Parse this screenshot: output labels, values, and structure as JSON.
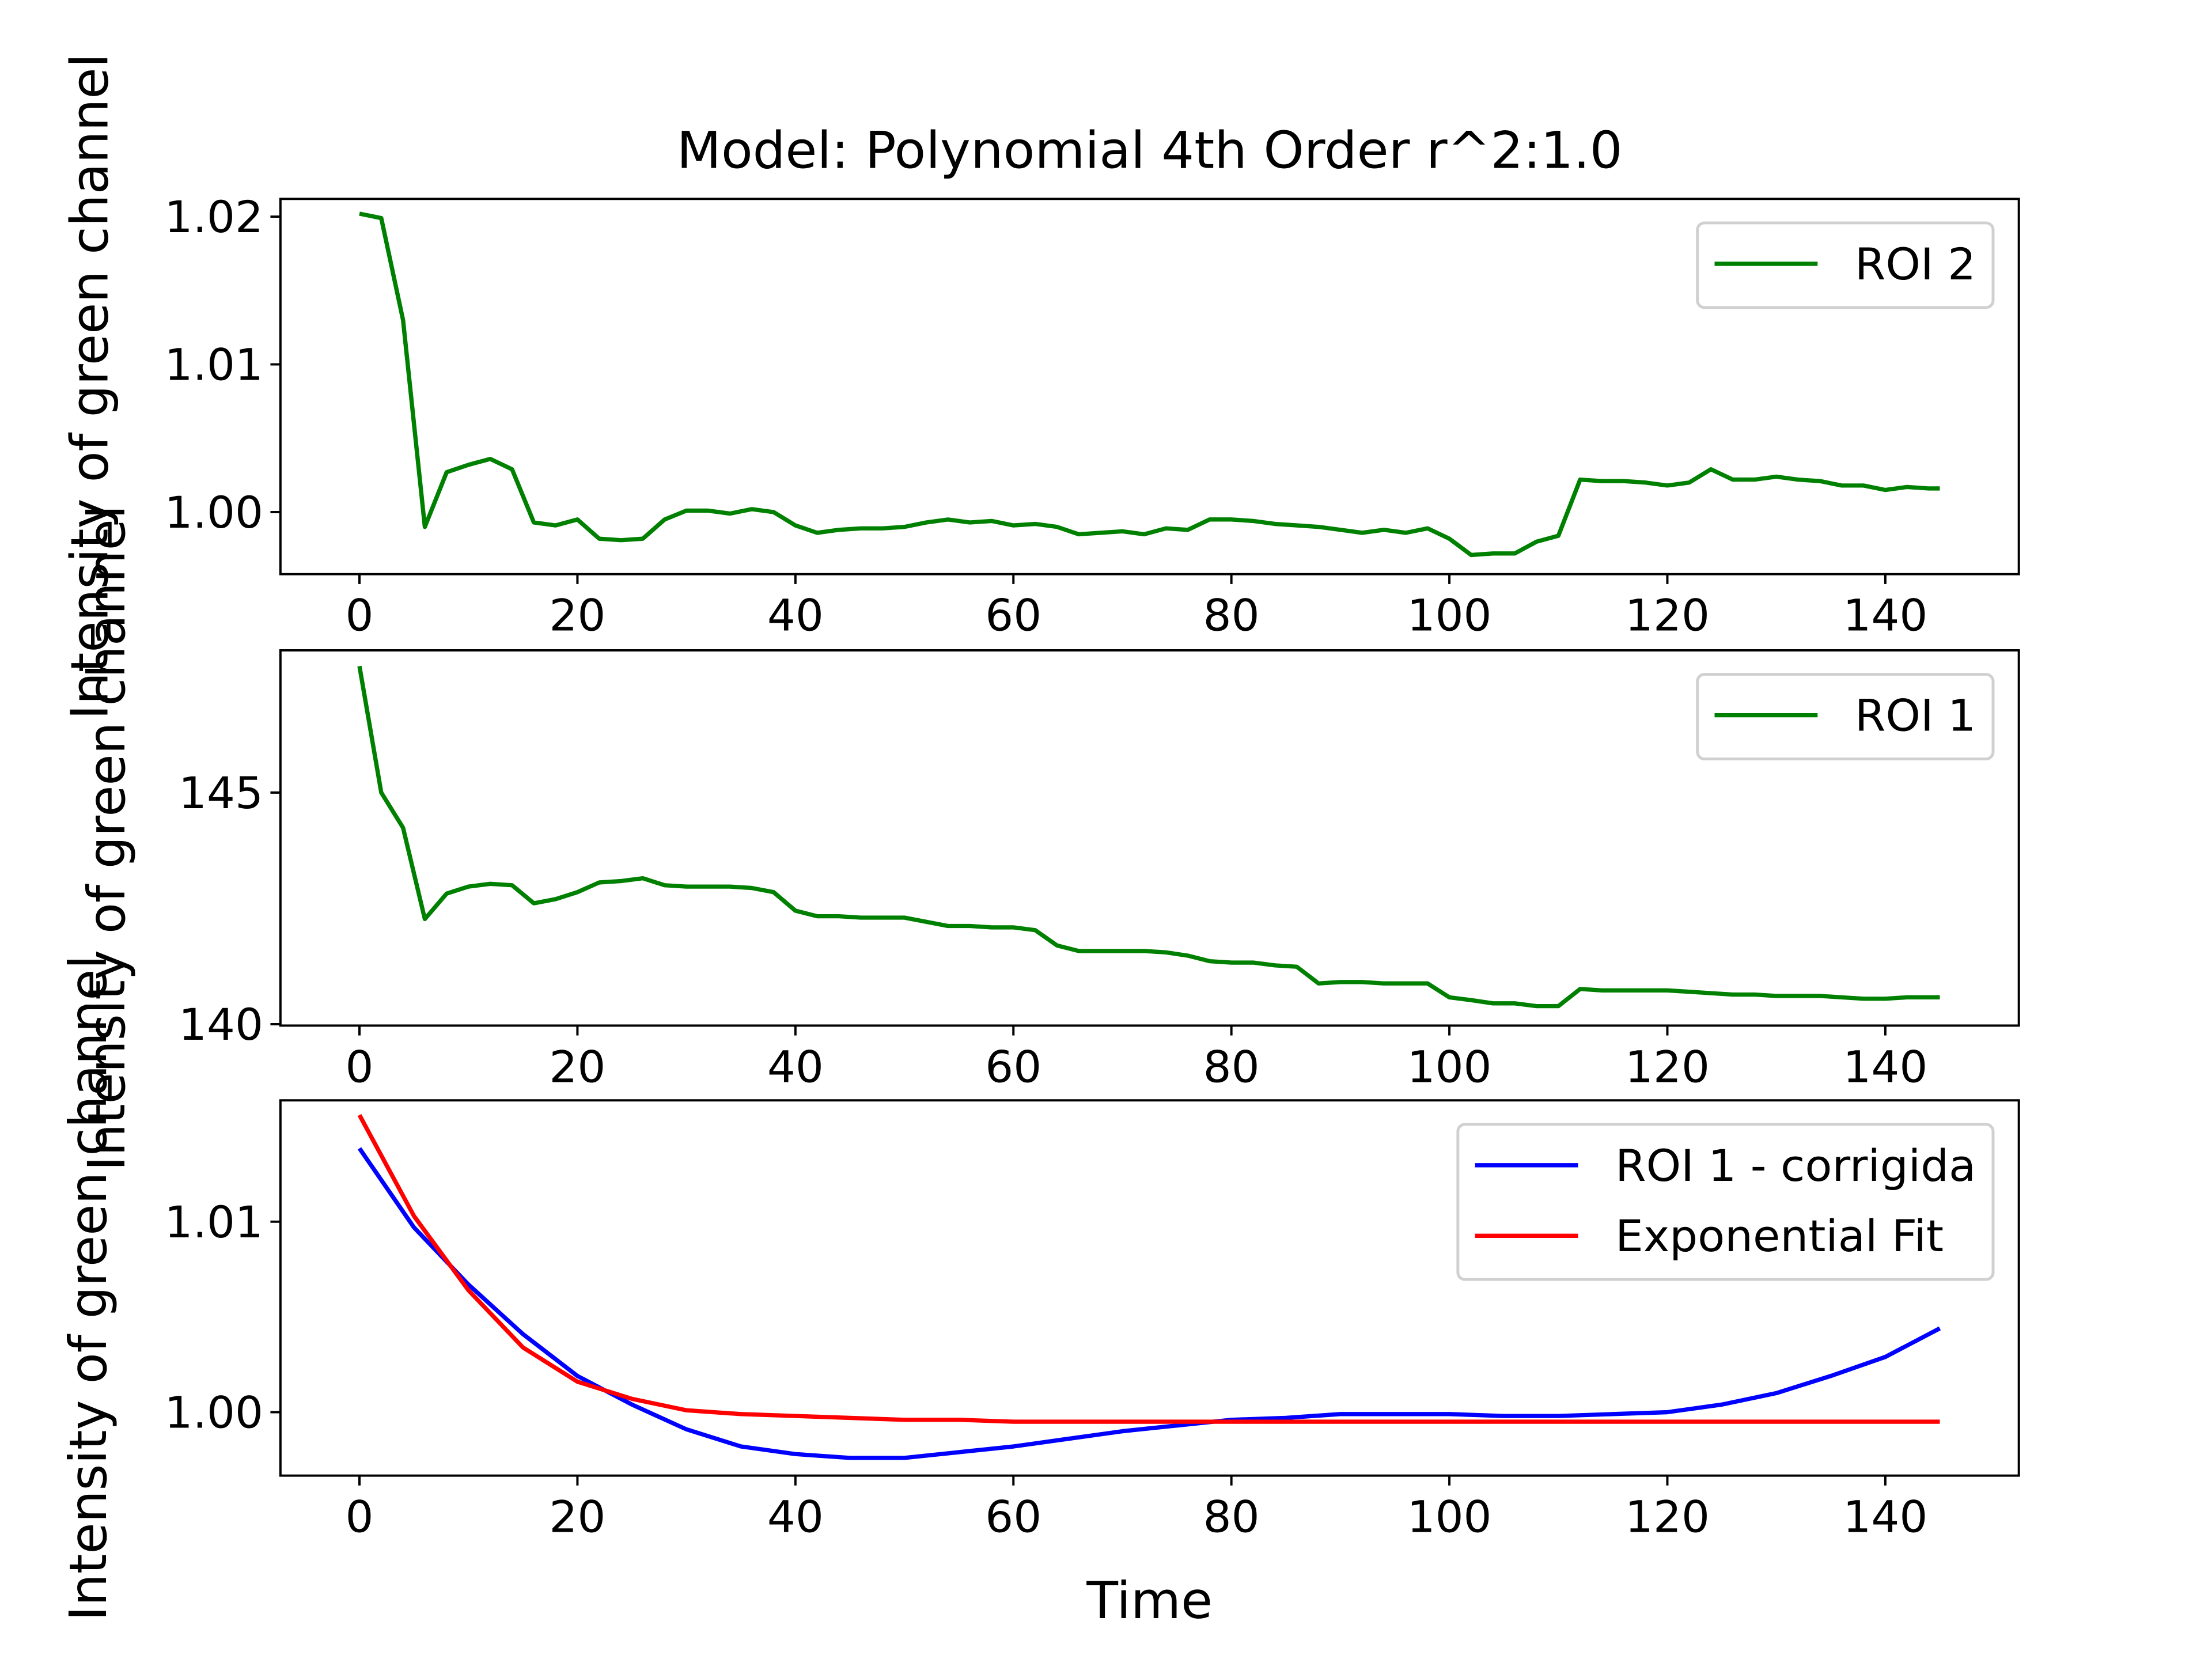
{
  "chart_data": [
    {
      "type": "line",
      "title": "Model: Polynomial 4th Order r^2:1.0",
      "ylabel": "Intensity of green channel",
      "x": [
        0,
        2,
        4,
        6,
        8,
        10,
        12,
        14,
        16,
        18,
        20,
        22,
        24,
        26,
        28,
        30,
        32,
        34,
        36,
        38,
        40,
        42,
        44,
        46,
        48,
        50,
        52,
        54,
        56,
        58,
        60,
        62,
        64,
        66,
        68,
        70,
        72,
        74,
        76,
        78,
        80,
        82,
        84,
        86,
        88,
        90,
        92,
        94,
        96,
        98,
        100,
        102,
        104,
        106,
        108,
        110,
        112,
        114,
        116,
        118,
        120,
        122,
        124,
        126,
        128,
        130,
        132,
        134,
        136,
        138,
        140,
        142,
        144,
        145
      ],
      "series": [
        {
          "name": "ROI 2",
          "color": "#008000",
          "values": [
            1.0202,
            1.0199,
            1.013,
            0.999,
            1.0027,
            1.0032,
            1.0036,
            1.0029,
            0.9993,
            0.9991,
            0.9995,
            0.9982,
            0.9981,
            0.9982,
            0.9995,
            1.0001,
            1.0001,
            0.9999,
            1.0002,
            1.0,
            0.9991,
            0.9986,
            0.9988,
            0.9989,
            0.9989,
            0.999,
            0.9993,
            0.9995,
            0.9993,
            0.9994,
            0.9991,
            0.9992,
            0.999,
            0.9985,
            0.9986,
            0.9987,
            0.9985,
            0.9989,
            0.9988,
            0.9995,
            0.9995,
            0.9994,
            0.9992,
            0.9991,
            0.999,
            0.9988,
            0.9986,
            0.9988,
            0.9986,
            0.9989,
            0.9982,
            0.9971,
            0.9972,
            0.9972,
            0.998,
            0.9984,
            1.0022,
            1.0021,
            1.0021,
            1.002,
            1.0018,
            1.002,
            1.0029,
            1.0022,
            1.0022,
            1.0024,
            1.0022,
            1.0021,
            1.0018,
            1.0018,
            1.0015,
            1.0017,
            1.0016,
            1.0016
          ]
        }
      ],
      "xlim": [
        -7.25,
        152.25
      ],
      "xticks": [
        0,
        20,
        40,
        60,
        80,
        100,
        120,
        140
      ],
      "ylim": [
        0.9958,
        1.0212
      ],
      "yticks": [
        {
          "value": 1.0,
          "label": "1.00"
        },
        1.01,
        1.02
      ],
      "legend": "upper right"
    },
    {
      "type": "line",
      "ylabel": "Intensity of green channel",
      "x": [
        0,
        2,
        4,
        6,
        8,
        10,
        12,
        14,
        16,
        18,
        20,
        22,
        24,
        26,
        28,
        30,
        32,
        34,
        36,
        38,
        40,
        42,
        44,
        46,
        48,
        50,
        52,
        54,
        56,
        58,
        60,
        62,
        64,
        66,
        68,
        70,
        72,
        74,
        76,
        78,
        80,
        82,
        84,
        86,
        88,
        90,
        92,
        94,
        96,
        98,
        100,
        102,
        104,
        106,
        108,
        110,
        112,
        114,
        116,
        118,
        120,
        122,
        124,
        126,
        128,
        130,
        132,
        134,
        136,
        138,
        140,
        142,
        144,
        145
      ],
      "series": [
        {
          "name": "ROI 1",
          "color": "#008000",
          "values": [
            147.73,
            145.0,
            144.24,
            142.27,
            142.82,
            142.97,
            143.03,
            143.0,
            142.61,
            142.7,
            142.85,
            143.06,
            143.09,
            143.15,
            143.0,
            142.97,
            142.97,
            142.97,
            142.94,
            142.85,
            142.45,
            142.33,
            142.33,
            142.3,
            142.3,
            142.3,
            142.21,
            142.12,
            142.12,
            142.09,
            142.09,
            142.03,
            141.7,
            141.58,
            141.58,
            141.58,
            141.58,
            141.55,
            141.48,
            141.36,
            141.33,
            141.33,
            141.27,
            141.24,
            140.88,
            140.91,
            140.91,
            140.88,
            140.88,
            140.88,
            140.58,
            140.52,
            140.45,
            140.45,
            140.39,
            140.39,
            140.76,
            140.73,
            140.73,
            140.73,
            140.73,
            140.7,
            140.67,
            140.64,
            140.64,
            140.61,
            140.61,
            140.61,
            140.58,
            140.55,
            140.55,
            140.58,
            140.58,
            140.58
          ]
        }
      ],
      "xlim": [
        -7.25,
        152.25
      ],
      "xticks": [
        0,
        20,
        40,
        60,
        80,
        100,
        120,
        140
      ],
      "ylim": [
        139.97,
        148.07
      ],
      "yticks": [
        140,
        145
      ],
      "legend": "upper right"
    },
    {
      "type": "line",
      "ylabel": "Intensity of green channel",
      "xlabel": "Time",
      "x": [
        0,
        5,
        10,
        15,
        20,
        25,
        30,
        35,
        40,
        45,
        50,
        55,
        60,
        65,
        70,
        75,
        80,
        85,
        90,
        95,
        100,
        105,
        110,
        115,
        120,
        125,
        130,
        135,
        140,
        145
      ],
      "series": [
        {
          "name": "ROI 1 - corrigida",
          "color": "#0000ff",
          "values": [
            1.01385,
            1.0097,
            1.0067,
            1.0041,
            1.0019,
            1.0004,
            0.9991,
            0.9982,
            0.9978,
            0.9976,
            0.9976,
            0.9979,
            0.9982,
            0.9986,
            0.999,
            0.9993,
            0.9996,
            0.9997,
            0.9999,
            0.9999,
            0.9999,
            0.9998,
            0.9998,
            0.9999,
            1.0,
            1.0004,
            1.001,
            1.0019,
            1.0029,
            1.0044
          ]
        },
        {
          "name": "Exponential Fit",
          "color": "#ff0000",
          "values": [
            1.0156,
            1.0103,
            1.0064,
            1.0034,
            1.0016,
            1.0007,
            1.0001,
            0.9999,
            0.9998,
            0.9997,
            0.9996,
            0.9996,
            0.9995,
            0.9995,
            0.9995,
            0.9995,
            0.9995,
            0.9995,
            0.9995,
            0.9995,
            0.9995,
            0.9995,
            0.9995,
            0.9995,
            0.9995,
            0.9995,
            0.9995,
            0.9995,
            0.9995,
            0.9995
          ]
        }
      ],
      "xlim": [
        -7.25,
        152.25
      ],
      "xticks": [
        0,
        20,
        40,
        60,
        80,
        100,
        120,
        140
      ],
      "ylim": [
        0.99667,
        1.01637
      ],
      "yticks": [
        {
          "value": 1.0,
          "label": "1.00"
        },
        1.01
      ],
      "legend": "upper right"
    }
  ]
}
